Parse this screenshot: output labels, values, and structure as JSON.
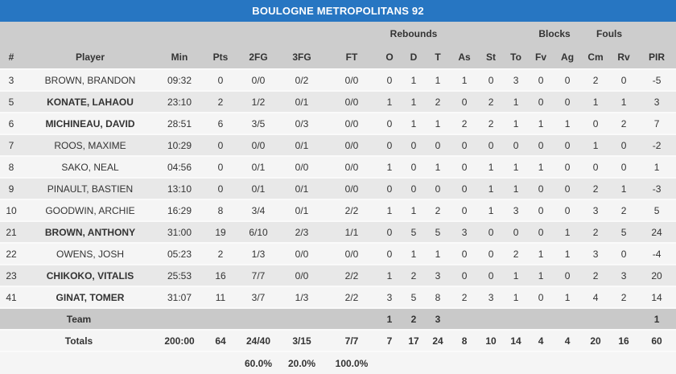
{
  "title": "BOULOGNE METROPOLITANS 92",
  "colors": {
    "title_bar_blue": "#2776c2",
    "title_text": "#ffffff",
    "header_band_gray": "#cdcdcd",
    "row_light": "#f5f5f5",
    "row_dark": "#e8e8e8",
    "team_row_gray": "#c9c9c9",
    "text": "#333333"
  },
  "table": {
    "group_headers": {
      "rebounds": "Rebounds",
      "blocks": "Blocks",
      "fouls": "Fouls"
    },
    "columns": [
      "#",
      "Player",
      "Min",
      "Pts",
      "2FG",
      "3FG",
      "FT",
      "O",
      "D",
      "T",
      "As",
      "St",
      "To",
      "Fv",
      "Ag",
      "Cm",
      "Rv",
      "PIR"
    ],
    "players": [
      {
        "num": "3",
        "name": "BROWN, BRANDON",
        "starter": false,
        "min": "09:32",
        "pts": "0",
        "fg2": "0/0",
        "fg3": "0/2",
        "ft": "0/0",
        "o": "0",
        "d": "1",
        "t": "1",
        "as": "1",
        "st": "0",
        "to": "3",
        "fv": "0",
        "ag": "0",
        "cm": "2",
        "rv": "0",
        "pir": "-5"
      },
      {
        "num": "5",
        "name": "KONATE, LAHAOU",
        "starter": true,
        "min": "23:10",
        "pts": "2",
        "fg2": "1/2",
        "fg3": "0/1",
        "ft": "0/0",
        "o": "1",
        "d": "1",
        "t": "2",
        "as": "0",
        "st": "2",
        "to": "1",
        "fv": "0",
        "ag": "0",
        "cm": "1",
        "rv": "1",
        "pir": "3"
      },
      {
        "num": "6",
        "name": "MICHINEAU, DAVID",
        "starter": true,
        "min": "28:51",
        "pts": "6",
        "fg2": "3/5",
        "fg3": "0/3",
        "ft": "0/0",
        "o": "0",
        "d": "1",
        "t": "1",
        "as": "2",
        "st": "2",
        "to": "1",
        "fv": "1",
        "ag": "1",
        "cm": "0",
        "rv": "2",
        "pir": "7"
      },
      {
        "num": "7",
        "name": "ROOS, MAXIME",
        "starter": false,
        "min": "10:29",
        "pts": "0",
        "fg2": "0/0",
        "fg3": "0/1",
        "ft": "0/0",
        "o": "0",
        "d": "0",
        "t": "0",
        "as": "0",
        "st": "0",
        "to": "0",
        "fv": "0",
        "ag": "0",
        "cm": "1",
        "rv": "0",
        "pir": "-2"
      },
      {
        "num": "8",
        "name": "SAKO, NEAL",
        "starter": false,
        "min": "04:56",
        "pts": "0",
        "fg2": "0/1",
        "fg3": "0/0",
        "ft": "0/0",
        "o": "1",
        "d": "0",
        "t": "1",
        "as": "0",
        "st": "1",
        "to": "1",
        "fv": "1",
        "ag": "0",
        "cm": "0",
        "rv": "0",
        "pir": "1"
      },
      {
        "num": "9",
        "name": "PINAULT, BASTIEN",
        "starter": false,
        "min": "13:10",
        "pts": "0",
        "fg2": "0/1",
        "fg3": "0/1",
        "ft": "0/0",
        "o": "0",
        "d": "0",
        "t": "0",
        "as": "0",
        "st": "1",
        "to": "1",
        "fv": "0",
        "ag": "0",
        "cm": "2",
        "rv": "1",
        "pir": "-3"
      },
      {
        "num": "10",
        "name": "GOODWIN, ARCHIE",
        "starter": false,
        "min": "16:29",
        "pts": "8",
        "fg2": "3/4",
        "fg3": "0/1",
        "ft": "2/2",
        "o": "1",
        "d": "1",
        "t": "2",
        "as": "0",
        "st": "1",
        "to": "3",
        "fv": "0",
        "ag": "0",
        "cm": "3",
        "rv": "2",
        "pir": "5"
      },
      {
        "num": "21",
        "name": "BROWN, ANTHONY",
        "starter": true,
        "min": "31:00",
        "pts": "19",
        "fg2": "6/10",
        "fg3": "2/3",
        "ft": "1/1",
        "o": "0",
        "d": "5",
        "t": "5",
        "as": "3",
        "st": "0",
        "to": "0",
        "fv": "0",
        "ag": "1",
        "cm": "2",
        "rv": "5",
        "pir": "24"
      },
      {
        "num": "22",
        "name": "OWENS, JOSH",
        "starter": false,
        "min": "05:23",
        "pts": "2",
        "fg2": "1/3",
        "fg3": "0/0",
        "ft": "0/0",
        "o": "0",
        "d": "1",
        "t": "1",
        "as": "0",
        "st": "0",
        "to": "2",
        "fv": "1",
        "ag": "1",
        "cm": "3",
        "rv": "0",
        "pir": "-4"
      },
      {
        "num": "23",
        "name": "CHIKOKO, VITALIS",
        "starter": true,
        "min": "25:53",
        "pts": "16",
        "fg2": "7/7",
        "fg3": "0/0",
        "ft": "2/2",
        "o": "1",
        "d": "2",
        "t": "3",
        "as": "0",
        "st": "0",
        "to": "1",
        "fv": "1",
        "ag": "0",
        "cm": "2",
        "rv": "3",
        "pir": "20"
      },
      {
        "num": "41",
        "name": "GINAT, TOMER",
        "starter": true,
        "min": "31:07",
        "pts": "11",
        "fg2": "3/7",
        "fg3": "1/3",
        "ft": "2/2",
        "o": "3",
        "d": "5",
        "t": "8",
        "as": "2",
        "st": "3",
        "to": "1",
        "fv": "0",
        "ag": "1",
        "cm": "4",
        "rv": "2",
        "pir": "14"
      }
    ],
    "team_row": {
      "label": "Team",
      "o": "1",
      "d": "2",
      "t": "3",
      "pir": "1"
    },
    "totals_row": {
      "label": "Totals",
      "min": "200:00",
      "pts": "64",
      "fg2": "24/40",
      "fg3": "3/15",
      "ft": "7/7",
      "o": "7",
      "d": "17",
      "t": "24",
      "as": "8",
      "st": "10",
      "to": "14",
      "fv": "4",
      "ag": "4",
      "cm": "20",
      "rv": "16",
      "pir": "60"
    },
    "percent_row": {
      "fg2": "60.0%",
      "fg3": "20.0%",
      "ft": "100.0%"
    }
  }
}
